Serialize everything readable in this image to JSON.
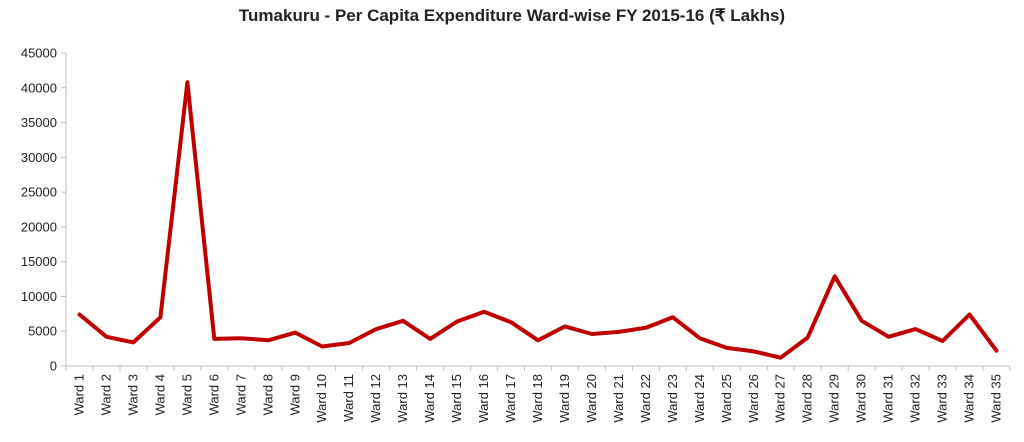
{
  "chart_data": {
    "type": "line",
    "title": "Tumakuru - Per Capita Expenditure Ward-wise FY 2015-16 (₹ Lakhs)",
    "xlabel": "",
    "ylabel": "",
    "ylim": [
      0,
      45000
    ],
    "yticks": [
      0,
      5000,
      10000,
      15000,
      20000,
      25000,
      30000,
      35000,
      40000,
      45000
    ],
    "grid": false,
    "legend": "none",
    "series_color": "#c00000",
    "categories": [
      "Ward 1",
      "Ward 2",
      "Ward 3",
      "Ward 4",
      "Ward 5",
      "Ward 6",
      "Ward 7",
      "Ward 8",
      "Ward 9",
      "Ward 10",
      "Ward 11",
      "Ward 12",
      "Ward 13",
      "Ward 14",
      "Ward 15",
      "Ward 16",
      "Ward 17",
      "Ward 18",
      "Ward 19",
      "Ward 20",
      "Ward 21",
      "Ward 22",
      "Ward 23",
      "Ward 24",
      "Ward 25",
      "Ward 26",
      "Ward 27",
      "Ward 28",
      "Ward 29",
      "Ward 30",
      "Ward 31",
      "Ward 32",
      "Ward 33",
      "Ward 34",
      "Ward 35"
    ],
    "series": [
      {
        "values": [
          7400,
          4200,
          3400,
          7000,
          40800,
          3900,
          4000,
          3700,
          4800,
          2800,
          3300,
          5300,
          6500,
          3900,
          6400,
          7800,
          6300,
          3700,
          5700,
          4600,
          4900,
          5500,
          7000,
          4000,
          2600,
          2100,
          1200,
          4100,
          12900,
          6500,
          4200,
          5300,
          3600,
          7400,
          2200
        ]
      }
    ]
  }
}
